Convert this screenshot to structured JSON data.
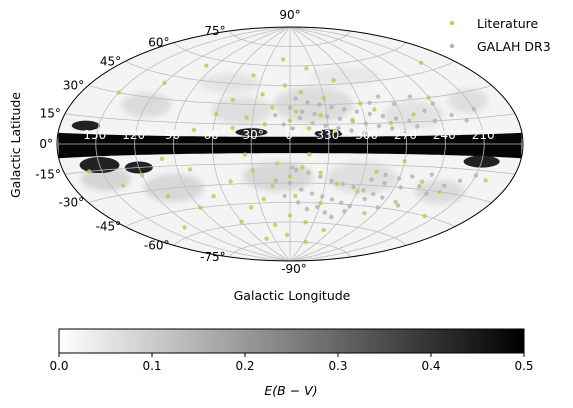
{
  "chart_data": {
    "type": "scatter",
    "projection": "aitoff",
    "xlabel": "Galactic Longitude",
    "ylabel": "Galactic Latitude",
    "longitude_tick_labels": [
      "150°",
      "120°",
      "90°",
      "60°",
      "30°",
      "0°",
      "330°",
      "300°",
      "270°",
      "240°",
      "210°"
    ],
    "longitude_ticks_deg": [
      150,
      120,
      90,
      60,
      30,
      0,
      -30,
      -60,
      -90,
      -120,
      -150
    ],
    "latitude_tick_labels": [
      "90°",
      "75°",
      "60°",
      "45°",
      "30°",
      "15°",
      "0°",
      "-15°",
      "-30°",
      "-45°",
      "-60°",
      "-75°",
      "-90°"
    ],
    "latitude_ticks_deg": [
      90,
      75,
      60,
      45,
      30,
      15,
      0,
      -15,
      -30,
      -45,
      -60,
      -75,
      -90
    ],
    "grid": true,
    "legend": {
      "placement": "top-right",
      "entries": [
        {
          "label": "Literature",
          "color": "#c8c850"
        },
        {
          "label": "GALAH DR3",
          "color": "#b4b4b4"
        }
      ]
    },
    "background_map": {
      "quantity": "E(B-V)",
      "description_note": "reddening map, black along the galactic plane"
    },
    "colorbar": {
      "label": "E(B − V)",
      "range": [
        0.0,
        0.5
      ],
      "tick_labels": [
        "0.0",
        "0.1",
        "0.2",
        "0.3",
        "0.4",
        "0.5"
      ],
      "ticks": [
        0.0,
        0.1,
        0.2,
        0.3,
        0.4,
        0.5
      ],
      "colormap": "gray_r"
    },
    "series": [
      {
        "name": "Literature",
        "color": "#c8c850",
        "points": [
          [
            10,
            65
          ],
          [
            -20,
            58
          ],
          [
            40,
            52
          ],
          [
            -45,
            48
          ],
          [
            5,
            45
          ],
          [
            -10,
            40
          ],
          [
            25,
            38
          ],
          [
            -30,
            35
          ],
          [
            -60,
            30
          ],
          [
            50,
            33
          ],
          [
            15,
            28
          ],
          [
            -5,
            25
          ],
          [
            -25,
            22
          ],
          [
            35,
            20
          ],
          [
            -50,
            18
          ],
          [
            -70,
            25
          ],
          [
            60,
            22
          ],
          [
            0,
            18
          ],
          [
            20,
            15
          ],
          [
            -15,
            12
          ],
          [
            -35,
            10
          ],
          [
            45,
            12
          ],
          [
            -80,
            15
          ],
          [
            -100,
            20
          ],
          [
            75,
            10
          ],
          [
            -120,
            30
          ],
          [
            120,
            40
          ],
          [
            100,
            55
          ],
          [
            -150,
            50
          ],
          [
            150,
            30
          ],
          [
            10,
            -15
          ],
          [
            -10,
            -18
          ],
          [
            30,
            -20
          ],
          [
            -25,
            -22
          ],
          [
            0,
            -25
          ],
          [
            50,
            -28
          ],
          [
            -40,
            -30
          ],
          [
            15,
            -32
          ],
          [
            -60,
            -35
          ],
          [
            70,
            -38
          ],
          [
            -5,
            -40
          ],
          [
            25,
            -42
          ],
          [
            -30,
            -45
          ],
          [
            40,
            -48
          ],
          [
            -80,
            -50
          ],
          [
            90,
            -45
          ],
          [
            0,
            -55
          ],
          [
            -20,
            -60
          ],
          [
            20,
            -62
          ],
          [
            -50,
            -65
          ],
          [
            60,
            -58
          ],
          [
            -100,
            -40
          ],
          [
            110,
            -35
          ],
          [
            -130,
            -30
          ],
          [
            140,
            -25
          ],
          [
            -160,
            -20
          ],
          [
            160,
            -15
          ],
          [
            5,
            -70
          ],
          [
            -35,
            -75
          ],
          [
            45,
            -72
          ],
          [
            -70,
            -20
          ],
          [
            80,
            -18
          ],
          [
            -90,
            -12
          ],
          [
            100,
            -10
          ],
          [
            -110,
            -25
          ],
          [
            120,
            -20
          ],
          [
            -140,
            -45
          ],
          [
            130,
            -55
          ],
          [
            -15,
            -8
          ],
          [
            35,
            -8
          ]
        ]
      },
      {
        "name": "GALAH DR3",
        "color": "#b4b4b4",
        "points": [
          [
            -5,
            35
          ],
          [
            -15,
            32
          ],
          [
            -25,
            30
          ],
          [
            -35,
            28
          ],
          [
            -45,
            26
          ],
          [
            -55,
            24
          ],
          [
            -65,
            22
          ],
          [
            -75,
            20
          ],
          [
            -85,
            18
          ],
          [
            -95,
            16
          ],
          [
            -10,
            25
          ],
          [
            -20,
            23
          ],
          [
            -30,
            21
          ],
          [
            -40,
            19
          ],
          [
            -50,
            17
          ],
          [
            -60,
            15
          ],
          [
            -70,
            13
          ],
          [
            -80,
            11
          ],
          [
            -90,
            9
          ],
          [
            -100,
            12
          ],
          [
            0,
            28
          ],
          [
            -8,
            20
          ],
          [
            -18,
            16
          ],
          [
            -28,
            14
          ],
          [
            -38,
            12
          ],
          [
            -48,
            10
          ],
          [
            -58,
            8
          ],
          [
            -68,
            30
          ],
          [
            -78,
            34
          ],
          [
            -88,
            28
          ],
          [
            -110,
            22
          ],
          [
            -120,
            26
          ],
          [
            -130,
            18
          ],
          [
            -140,
            14
          ],
          [
            -150,
            20
          ],
          [
            5,
            15
          ],
          [
            12,
            22
          ],
          [
            -2,
            12
          ],
          [
            -105,
            32
          ],
          [
            -115,
            15
          ],
          [
            -5,
            -20
          ],
          [
            -15,
            -22
          ],
          [
            -25,
            -25
          ],
          [
            -35,
            -28
          ],
          [
            -45,
            -30
          ],
          [
            -55,
            -32
          ],
          [
            -65,
            -34
          ],
          [
            -75,
            -36
          ],
          [
            -85,
            -38
          ],
          [
            -95,
            -30
          ],
          [
            -10,
            -35
          ],
          [
            -20,
            -38
          ],
          [
            -30,
            -40
          ],
          [
            -40,
            -42
          ],
          [
            -50,
            -44
          ],
          [
            -60,
            -46
          ],
          [
            -70,
            -40
          ],
          [
            -80,
            -28
          ],
          [
            -90,
            -24
          ],
          [
            -100,
            -22
          ],
          [
            0,
            -30
          ],
          [
            -8,
            -45
          ],
          [
            -18,
            -50
          ],
          [
            -28,
            -48
          ],
          [
            -38,
            -52
          ],
          [
            -48,
            -55
          ],
          [
            -58,
            -50
          ],
          [
            -68,
            -26
          ],
          [
            -78,
            -22
          ],
          [
            -88,
            -45
          ],
          [
            -110,
            -28
          ],
          [
            -120,
            -32
          ],
          [
            -130,
            -26
          ],
          [
            -140,
            -22
          ],
          [
            -150,
            -18
          ],
          [
            5,
            -40
          ],
          [
            12,
            -28
          ],
          [
            -2,
            -18
          ],
          [
            -105,
            -42
          ],
          [
            -115,
            -20
          ]
        ]
      }
    ]
  }
}
